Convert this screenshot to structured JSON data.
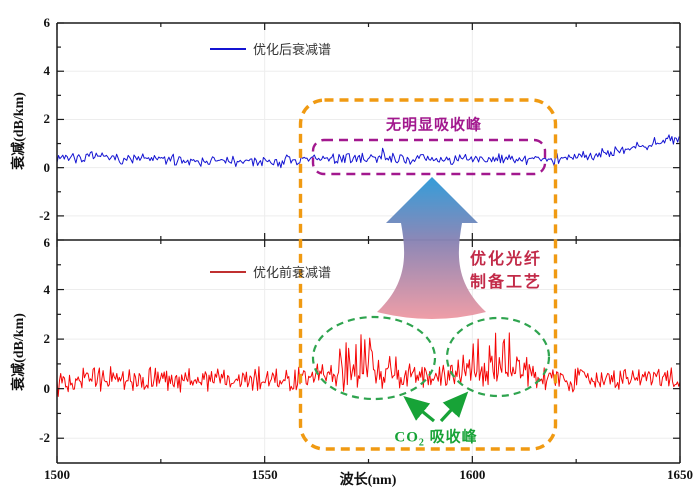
{
  "figure": {
    "background": "#ffffff",
    "xlabel": "波长(nm)",
    "ylabel": "衰减(dB/km)",
    "x_ticks": [
      "1500",
      "1550",
      "1600",
      "1650"
    ],
    "x_minor_ticks": [
      1525,
      1575,
      1625
    ],
    "y_ticks": [
      "6",
      "4",
      "2",
      "0",
      "-2"
    ],
    "y_minor_ticks": [
      5,
      3,
      1,
      -1
    ],
    "axis_color": "#1a1a1a",
    "grid_color": "#ededed"
  },
  "chart_data": [
    {
      "type": "line",
      "panel": "top",
      "name": "优化后衰减谱",
      "color": "#1414d2",
      "x_range": [
        1500,
        1650
      ],
      "ylim": [
        -3,
        6
      ],
      "yticks": [
        -2,
        0,
        2,
        4,
        6
      ],
      "xticks": [
        1500,
        1550,
        1600,
        1650
      ],
      "xlabel": "波长(nm)",
      "ylabel": "衰减(dB/km)",
      "grid": "major, light gray",
      "legend_position": "top-center-left inside panel",
      "description": "Noisy flat attenuation baseline about 0.2-0.5 dB/km across 1500-1620 nm with no absorption peaks, rising smoothly to about 1.3 dB/km at 1650 nm",
      "model": {
        "seed": 7,
        "step": 0.35,
        "noise": 0.13,
        "mean_points": [
          [
            1500,
            0.45
          ],
          [
            1508,
            0.42
          ],
          [
            1520,
            0.36
          ],
          [
            1535,
            0.3
          ],
          [
            1548,
            0.22
          ],
          [
            1558,
            0.3
          ],
          [
            1566,
            0.38
          ],
          [
            1578,
            0.4
          ],
          [
            1590,
            0.35
          ],
          [
            1602,
            0.33
          ],
          [
            1612,
            0.35
          ],
          [
            1620,
            0.38
          ],
          [
            1628,
            0.5
          ],
          [
            1636,
            0.75
          ],
          [
            1643,
            1.0
          ],
          [
            1650,
            1.28
          ]
        ],
        "peaks": []
      }
    },
    {
      "type": "line",
      "panel": "bottom",
      "name": "优化前衰减谱",
      "color": "#f50505",
      "x_range": [
        1500,
        1650
      ],
      "ylim": [
        -3,
        6
      ],
      "yticks": [
        -2,
        0,
        2,
        4,
        6
      ],
      "xticks": [
        1500,
        1550,
        1600,
        1650
      ],
      "xlabel": "波长(nm)",
      "ylabel": "衰减(dB/km)",
      "grid": "major, light gray",
      "legend_position": "top-center-left inside panel",
      "description": "Noisy attenuation baseline about 0.4 dB/km with CO2 absorption spike clusters near 1573 nm (up to ~2.3 dB/km) and near 1605 nm (up to ~2.5 dB/km)",
      "model": {
        "seed": 13,
        "step": 0.3,
        "noise": 0.28,
        "mean_points": [
          [
            1500,
            0.38
          ],
          [
            1650,
            0.42
          ]
        ],
        "peaks": [
          {
            "center": 1572.5,
            "sigma": 5.5,
            "amp": 1.9
          },
          {
            "center": 1605,
            "sigma": 7,
            "amp": 2.0
          }
        ]
      }
    }
  ],
  "annotations": {
    "no_peak_label": {
      "text": "无明显吸收峰",
      "color": "#a2188e"
    },
    "purple_box_color": "#a2188e",
    "orange_box_color": "#f09a12",
    "process_label": {
      "line1": "优化光纤",
      "line2": "制备工艺",
      "color": "#c22a48"
    },
    "co2_label": {
      "prefix": "CO",
      "sub": "2",
      "suffix": " 吸收峰",
      "color": "#17a337"
    },
    "ellipse_color": "#2fa44f",
    "arrow_gradient": {
      "top": "#2e9ad8",
      "mid": "#8a84b4",
      "bottom": "#f09ba4"
    }
  }
}
